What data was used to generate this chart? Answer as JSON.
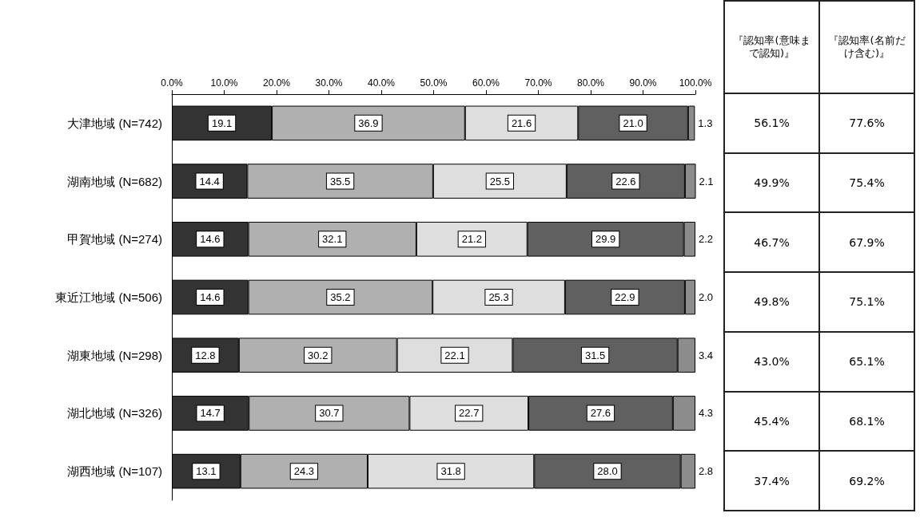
{
  "chart_data": [
    {
      "type": "bar",
      "orientation": "horizontal",
      "stacked": true,
      "grid": false,
      "categories": [
        "大津地域 (N=742)",
        "湖南地域 (N=682)",
        "甲賀地域 (N=274)",
        "東近江地域 (N=506)",
        "湖東地域 (N=298)",
        "湖北地域 (N=326)",
        "湖西地域 (N=107)"
      ],
      "xlim": [
        0,
        100
      ],
      "xticks": [
        {
          "value": 0,
          "label": "0.0%"
        },
        {
          "value": 10,
          "label": "10.0%"
        },
        {
          "value": 20,
          "label": "20.0%"
        },
        {
          "value": 30,
          "label": "30.0%"
        },
        {
          "value": 40,
          "label": "40.0%"
        },
        {
          "value": 50,
          "label": "50.0%"
        },
        {
          "value": 60,
          "label": "60.0%"
        },
        {
          "value": 70,
          "label": "70.0%"
        },
        {
          "value": 80,
          "label": "80.0%"
        },
        {
          "value": 90,
          "label": "90.0%"
        },
        {
          "value": 100,
          "label": "100.0%"
        }
      ],
      "series": [
        {
          "color": "#333333",
          "values": [
            19.1,
            14.4,
            14.6,
            14.6,
            12.8,
            14.7,
            13.1
          ],
          "value_labels": [
            "19.1",
            "14.4",
            "14.6",
            "14.6",
            "12.8",
            "14.7",
            "13.1"
          ]
        },
        {
          "color": "#b0b0b0",
          "values": [
            36.9,
            35.5,
            32.1,
            35.2,
            30.2,
            30.7,
            24.3
          ],
          "value_labels": [
            "36.9",
            "35.5",
            "32.1",
            "35.2",
            "30.2",
            "30.7",
            "24.3"
          ]
        },
        {
          "color": "#dedede",
          "values": [
            21.6,
            25.5,
            21.2,
            25.3,
            22.1,
            22.7,
            31.8
          ],
          "value_labels": [
            "21.6",
            "25.5",
            "21.2",
            "25.3",
            "22.1",
            "22.7",
            "31.8"
          ]
        },
        {
          "color": "#606060",
          "values": [
            21.0,
            22.6,
            29.9,
            22.9,
            31.5,
            27.6,
            28.0
          ],
          "value_labels": [
            "21.0",
            "22.6",
            "29.9",
            "22.9",
            "31.5",
            "27.6",
            "28.0"
          ]
        },
        {
          "color": "#8c8c8c",
          "values": [
            1.3,
            2.1,
            2.2,
            2.0,
            3.4,
            4.3,
            2.8
          ],
          "value_labels": [
            "1.3",
            "2.1",
            "2.2",
            "2.0",
            "3.4",
            "4.3",
            "2.8"
          ]
        }
      ]
    },
    {
      "type": "other",
      "categories": [
        "『認知率(意味まで認知)』",
        "『認知率(名前だけ含む)』"
      ],
      "annotations": [
        "56.1%",
        "77.6%",
        "49.9%",
        "75.4%",
        "46.7%",
        "67.9%",
        "49.8%",
        "75.1%",
        "43.0%",
        "65.1%",
        "45.4%",
        "68.1%",
        "37.4%",
        "69.2%"
      ]
    }
  ]
}
